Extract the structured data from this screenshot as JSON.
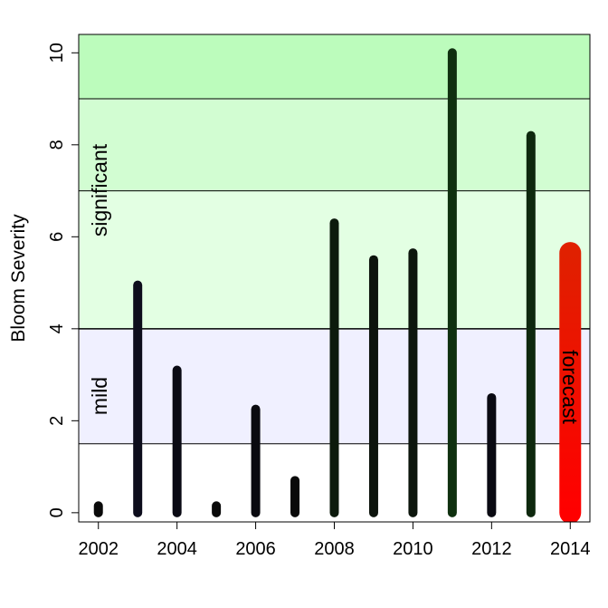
{
  "chart_data": {
    "type": "bar",
    "ylabel": "Bloom Severity",
    "xlabel": "",
    "title": "",
    "xlim": [
      2001.5,
      2014.5
    ],
    "ylim": [
      -0.2,
      10.4
    ],
    "x_ticks": [
      2002,
      2004,
      2006,
      2008,
      2010,
      2012,
      2014
    ],
    "y_ticks": [
      0,
      2,
      4,
      6,
      8,
      10
    ],
    "grid": false,
    "bands": [
      {
        "from": 1.5,
        "to": 4,
        "color": "#f0f0ff",
        "label": "mild"
      },
      {
        "from": 4,
        "to": 7,
        "color": "#e3ffe3",
        "label": "significant"
      },
      {
        "from": 7,
        "to": 9,
        "color": "#d2fdd2",
        "label": ""
      },
      {
        "from": 9,
        "to": 10.4,
        "color": "#bcfcbc",
        "label": ""
      }
    ],
    "band_lines": [
      1.5,
      4,
      7,
      9
    ],
    "bars": [
      {
        "year": 2002,
        "value": 0.15,
        "color": "#0a0a0a"
      },
      {
        "year": 2003,
        "value": 4.95,
        "color": "#0d0d1c"
      },
      {
        "year": 2004,
        "value": 3.1,
        "color": "#0a0a14"
      },
      {
        "year": 2005,
        "value": 0.15,
        "color": "#0a0a0a"
      },
      {
        "year": 2006,
        "value": 2.25,
        "color": "#0a0a10"
      },
      {
        "year": 2007,
        "value": 0.7,
        "color": "#0a0a0a"
      },
      {
        "year": 2008,
        "value": 6.3,
        "color": "#0c1a0c"
      },
      {
        "year": 2009,
        "value": 5.5,
        "color": "#0d140d"
      },
      {
        "year": 2010,
        "value": 5.65,
        "color": "#0d160d"
      },
      {
        "year": 2011,
        "value": 10.0,
        "color": "#0f300f"
      },
      {
        "year": 2012,
        "value": 2.5,
        "color": "#0a0a12"
      },
      {
        "year": 2013,
        "value": 8.2,
        "color": "#0e280e"
      }
    ],
    "forecast": {
      "year": 2014,
      "value": 5.65,
      "label": "forecast",
      "color_top": "#e02000",
      "color_bottom": "#ff0000"
    }
  }
}
